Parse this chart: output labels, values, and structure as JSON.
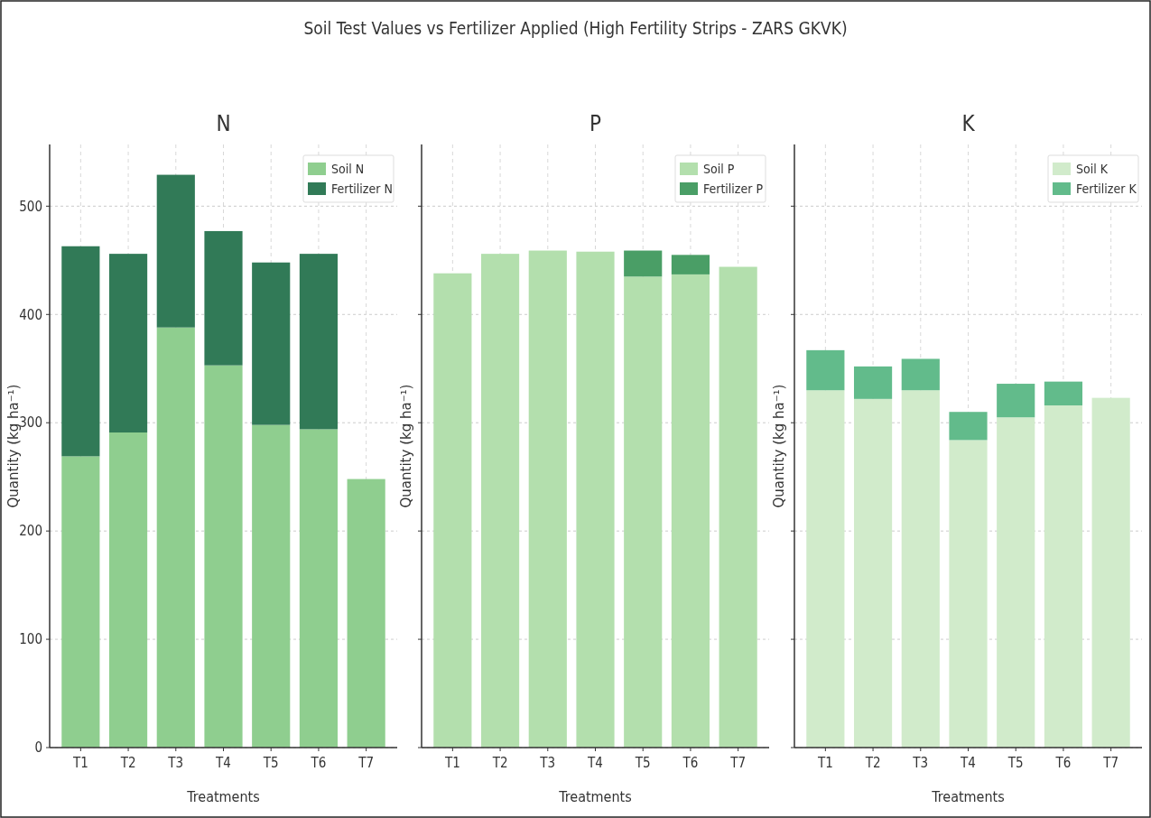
{
  "chart_data": [
    {
      "type": "bar",
      "title": "N",
      "xlabel": "Treatments",
      "ylabel": "Quantity (kg ha⁻¹)",
      "annotations": [
        "Soil Test Values vs Fertilizer Applied (High Fertility Strips - ZARS GKVK)"
      ],
      "categories": [
        "T1",
        "T2",
        "T3",
        "T4",
        "T5",
        "T6",
        "T7"
      ],
      "stacked": true,
      "series": [
        {
          "name": "Soil N",
          "color": "#8fce8f",
          "values": [
            269,
            291,
            388,
            353,
            298,
            294,
            248
          ]
        },
        {
          "name": "Fertilizer N",
          "color": "#317a57",
          "values": [
            194,
            165,
            141,
            124,
            150,
            162,
            0
          ]
        }
      ],
      "ylim": [
        0,
        557
      ],
      "yticks": [
        0,
        100,
        200,
        300,
        400,
        500
      ],
      "grid": true,
      "legend": "top right"
    },
    {
      "type": "bar",
      "title": "P",
      "xlabel": "Treatments",
      "ylabel": "Quantity (kg ha⁻¹)",
      "categories": [
        "T1",
        "T2",
        "T3",
        "T4",
        "T5",
        "T6",
        "T7"
      ],
      "stacked": true,
      "series": [
        {
          "name": "Soil P",
          "color": "#b3dfad",
          "values": [
            438,
            456,
            459,
            458,
            435,
            437,
            444
          ]
        },
        {
          "name": "Fertilizer P",
          "color": "#4a9e66",
          "values": [
            0,
            0,
            0,
            0,
            24,
            18,
            0
          ]
        }
      ],
      "ylim": [
        0,
        557
      ],
      "yticks": [
        0,
        100,
        200,
        300,
        400,
        500
      ],
      "tick_labels": "x",
      "grid": true,
      "legend": "top right"
    },
    {
      "type": "bar",
      "title": "K",
      "xlabel": "Treatments",
      "ylabel": "Quantity (kg ha⁻¹)",
      "categories": [
        "T1",
        "T2",
        "T3",
        "T4",
        "T5",
        "T6",
        "T7"
      ],
      "stacked": true,
      "series": [
        {
          "name": "Soil K",
          "color": "#d1ebcb",
          "values": [
            330,
            322,
            330,
            284,
            305,
            316,
            323
          ]
        },
        {
          "name": "Fertilizer K",
          "color": "#62bb8b",
          "values": [
            37,
            30,
            29,
            26,
            31,
            22,
            0
          ]
        }
      ],
      "ylim": [
        0,
        557
      ],
      "yticks": [
        0,
        100,
        200,
        300,
        400,
        500
      ],
      "tick_labels": "x",
      "grid": true,
      "legend": "top right"
    }
  ]
}
